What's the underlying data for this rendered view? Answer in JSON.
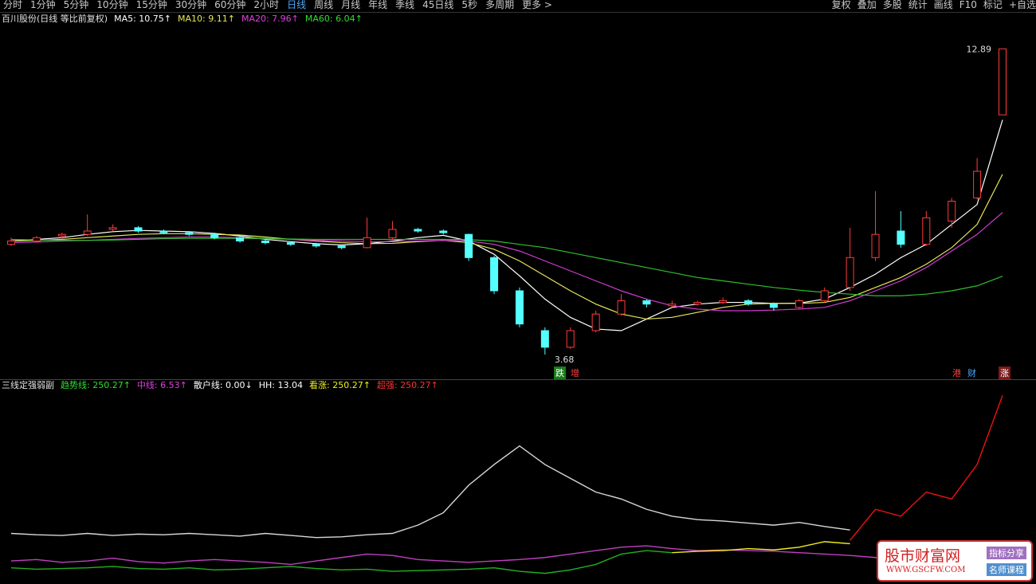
{
  "toolbar": {
    "left": [
      "分时",
      "1分钟",
      "5分钟",
      "10分钟",
      "15分钟",
      "30分钟",
      "60分钟",
      "2小时",
      "日线",
      "周线",
      "月线",
      "年线",
      "季线",
      "45日线",
      "5秒",
      "多周期",
      "更多 >"
    ],
    "right": [
      "复权",
      "叠加",
      "多股",
      "统计",
      "画线",
      "F10",
      "标记",
      "+自选"
    ]
  },
  "price_header": {
    "title": "百川股份(日线 等比前复权)",
    "ma": [
      "MA5: 10.75↑",
      "MA10: 9.11↑",
      "MA20: 7.96↑",
      "MA60: 6.04↑"
    ]
  },
  "markers": [
    "跌",
    "增",
    "港",
    "财",
    "涨"
  ],
  "indicator_header": {
    "title": "三线定强弱副",
    "items": [
      "趋势线: 250.27↑",
      "中线: 6.53↑",
      "散户线: 0.00↓",
      "HH: 13.04",
      "看涨: 250.27↑",
      "超强: 250.27↑"
    ]
  },
  "watermark": {
    "name": "股市财富网",
    "url": "WWW.GSCFW.COM",
    "tags": [
      "指标分享",
      "名师课程"
    ]
  },
  "chart_data": [
    {
      "type": "candlestick",
      "ylim": [
        3.2,
        13.4
      ],
      "up_color": "#ff3b3b",
      "down_color": "#54ffff",
      "ohlc": [
        [
          7.0,
          7.2,
          6.95,
          7.1
        ],
        [
          7.1,
          7.25,
          7.05,
          7.2
        ],
        [
          7.25,
          7.35,
          7.15,
          7.3
        ],
        [
          7.3,
          7.9,
          7.25,
          7.4
        ],
        [
          7.45,
          7.6,
          7.4,
          7.5
        ],
        [
          7.5,
          7.55,
          7.35,
          7.4
        ],
        [
          7.4,
          7.45,
          7.3,
          7.35
        ],
        [
          7.35,
          7.4,
          7.25,
          7.3
        ],
        [
          7.3,
          7.35,
          7.15,
          7.2
        ],
        [
          7.2,
          7.25,
          7.05,
          7.1
        ],
        [
          7.1,
          7.15,
          7.0,
          7.05
        ],
        [
          7.05,
          7.1,
          6.95,
          7.0
        ],
        [
          7.0,
          7.05,
          6.9,
          6.95
        ],
        [
          6.95,
          7.0,
          6.85,
          6.9
        ],
        [
          6.9,
          7.8,
          6.88,
          7.2
        ],
        [
          7.2,
          7.7,
          7.15,
          7.45
        ],
        [
          7.45,
          7.5,
          7.35,
          7.4
        ],
        [
          7.4,
          7.45,
          7.3,
          7.35
        ],
        [
          7.3,
          7.32,
          6.5,
          6.6
        ],
        [
          6.6,
          6.65,
          5.5,
          5.6
        ],
        [
          5.6,
          5.7,
          4.5,
          4.6
        ],
        [
          4.4,
          4.5,
          3.68,
          3.9
        ],
        [
          3.9,
          4.5,
          3.85,
          4.4
        ],
        [
          4.4,
          5.0,
          4.35,
          4.9
        ],
        [
          4.9,
          5.5,
          4.85,
          5.3
        ],
        [
          5.3,
          5.35,
          5.1,
          5.2
        ],
        [
          5.15,
          5.3,
          5.1,
          5.2
        ],
        [
          5.2,
          5.3,
          5.15,
          5.25
        ],
        [
          5.25,
          5.4,
          5.2,
          5.3
        ],
        [
          5.3,
          5.35,
          5.15,
          5.2
        ],
        [
          5.2,
          5.25,
          5.0,
          5.1
        ],
        [
          5.1,
          5.35,
          5.05,
          5.3
        ],
        [
          5.3,
          5.7,
          5.25,
          5.6
        ],
        [
          5.7,
          7.5,
          5.6,
          6.6
        ],
        [
          6.6,
          8.6,
          6.5,
          7.3
        ],
        [
          7.4,
          8.0,
          6.9,
          7.0
        ],
        [
          7.0,
          8.0,
          6.95,
          7.8
        ],
        [
          7.7,
          8.4,
          7.5,
          8.3
        ],
        [
          8.4,
          9.6,
          8.35,
          9.2
        ],
        [
          10.9,
          12.89,
          10.9,
          12.89
        ]
      ],
      "series": [
        {
          "color": "#ffffff",
          "values": [
            7.1,
            7.15,
            7.2,
            7.3,
            7.38,
            7.42,
            7.4,
            7.38,
            7.33,
            7.25,
            7.15,
            7.08,
            7.02,
            6.98,
            7.02,
            7.1,
            7.2,
            7.27,
            7.1,
            6.7,
            6.05,
            5.35,
            4.8,
            4.45,
            4.4,
            4.75,
            5.1,
            5.2,
            5.25,
            5.25,
            5.22,
            5.23,
            5.35,
            5.7,
            6.1,
            6.6,
            7.0,
            7.6,
            8.2,
            10.75
          ]
        },
        {
          "color": "#e6e65a",
          "values": [
            7.1,
            7.12,
            7.15,
            7.2,
            7.25,
            7.3,
            7.32,
            7.32,
            7.3,
            7.28,
            7.22,
            7.15,
            7.1,
            7.05,
            7.02,
            7.03,
            7.08,
            7.12,
            7.05,
            6.85,
            6.5,
            6.05,
            5.6,
            5.2,
            4.9,
            4.75,
            4.8,
            4.95,
            5.1,
            5.2,
            5.22,
            5.22,
            5.25,
            5.4,
            5.7,
            6.0,
            6.4,
            6.9,
            7.6,
            9.11
          ]
        },
        {
          "color": "#d23cd2",
          "values": [
            7.05,
            7.07,
            7.1,
            7.12,
            7.15,
            7.18,
            7.2,
            7.22,
            7.22,
            7.2,
            7.18,
            7.15,
            7.12,
            7.1,
            7.08,
            7.08,
            7.1,
            7.12,
            7.1,
            7.0,
            6.8,
            6.5,
            6.2,
            5.9,
            5.6,
            5.35,
            5.15,
            5.05,
            5.0,
            5.0,
            5.02,
            5.05,
            5.1,
            5.3,
            5.6,
            5.9,
            6.3,
            6.8,
            7.3,
            7.96
          ]
        },
        {
          "color": "#2fbf2f",
          "values": [
            7.15,
            7.13,
            7.12,
            7.12,
            7.13,
            7.15,
            7.17,
            7.18,
            7.18,
            7.18,
            7.17,
            7.16,
            7.15,
            7.15,
            7.15,
            7.15,
            7.15,
            7.15,
            7.14,
            7.1,
            7.0,
            6.9,
            6.75,
            6.6,
            6.45,
            6.3,
            6.15,
            6.0,
            5.9,
            5.8,
            5.7,
            5.62,
            5.55,
            5.5,
            5.45,
            5.45,
            5.5,
            5.6,
            5.75,
            6.04
          ]
        }
      ]
    },
    {
      "type": "line",
      "ylim": [
        -20,
        260
      ],
      "series": [
        {
          "color": "#d8d8d8",
          "values": [
            50,
            48,
            47,
            50,
            47,
            49,
            48,
            50,
            48,
            46,
            50,
            47,
            44,
            45,
            48,
            50,
            62,
            80,
            120,
            150,
            177,
            150,
            130,
            110,
            100,
            85,
            75,
            70,
            68,
            65,
            62,
            66,
            60,
            55,
            null,
            null,
            null,
            null,
            null,
            null
          ]
        },
        {
          "color": "#c040c0",
          "values": [
            10,
            12,
            8,
            10,
            14,
            9,
            7,
            10,
            12,
            10,
            8,
            5,
            10,
            15,
            20,
            18,
            12,
            10,
            8,
            10,
            12,
            15,
            20,
            25,
            30,
            32,
            28,
            25,
            26,
            25,
            24,
            22,
            20,
            18,
            15,
            10,
            null,
            null,
            null,
            null
          ]
        },
        {
          "color": "#22b022",
          "values": [
            0,
            -2,
            -1,
            0,
            2,
            -1,
            -2,
            0,
            -3,
            -2,
            0,
            2,
            -1,
            -3,
            -2,
            -5,
            -4,
            -3,
            -2,
            0,
            -5,
            -8,
            -3,
            5,
            20,
            25,
            22,
            null,
            null,
            null,
            null,
            null,
            null,
            null,
            null,
            null,
            null,
            null,
            null,
            null
          ]
        },
        {
          "color": "#f0f020",
          "values": [
            null,
            null,
            null,
            null,
            null,
            null,
            null,
            null,
            null,
            null,
            null,
            null,
            null,
            null,
            null,
            null,
            null,
            null,
            null,
            null,
            null,
            null,
            null,
            null,
            null,
            null,
            22,
            24,
            25,
            28,
            26,
            30,
            38,
            35,
            null,
            null,
            null,
            null,
            null,
            null
          ]
        },
        {
          "color": "#ee1111",
          "values": [
            null,
            null,
            null,
            null,
            null,
            null,
            null,
            null,
            null,
            null,
            null,
            null,
            null,
            null,
            null,
            null,
            null,
            null,
            null,
            null,
            null,
            null,
            null,
            null,
            null,
            null,
            null,
            null,
            null,
            null,
            null,
            null,
            null,
            40,
            85,
            75,
            110,
            100,
            150,
            250.27
          ]
        }
      ]
    }
  ]
}
